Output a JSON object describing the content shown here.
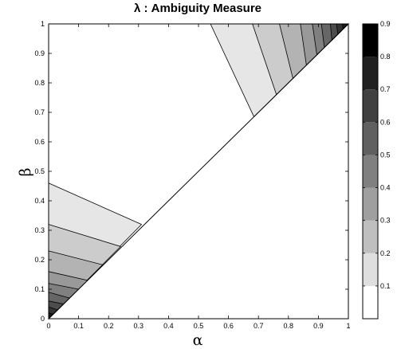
{
  "chart_data": {
    "type": "contour",
    "title": "λ : Ambiguity Measure",
    "xlabel": "α",
    "ylabel": "β",
    "xlim": [
      0,
      1
    ],
    "ylim": [
      0,
      1
    ],
    "x_ticks": [
      "0",
      "0.1",
      "0.2",
      "0.3",
      "0.4",
      "0.5",
      "0.6",
      "0.7",
      "0.8",
      "0.9",
      "1"
    ],
    "y_ticks": [
      "0",
      "0.1",
      "0.2",
      "0.3",
      "0.4",
      "0.5",
      "0.6",
      "0.7",
      "0.8",
      "0.9",
      "1"
    ],
    "grid": false,
    "diagonal": [
      [
        0,
        0
      ],
      [
        1,
        1
      ]
    ],
    "colorbar": {
      "range": [
        0,
        0.9
      ],
      "ticks": [
        "0.1",
        "0.2",
        "0.3",
        "0.4",
        "0.5",
        "0.6",
        "0.7",
        "0.8",
        "0.9"
      ],
      "colormap": "gray (white = low, black = high)"
    },
    "contour_bands": {
      "lower_left": [
        {
          "y_at_left": 0.46,
          "end": [
            0.31,
            0.32
          ],
          "color": "#e6e6e6"
        },
        {
          "y_at_left": 0.32,
          "end": [
            0.24,
            0.245
          ],
          "color": "#cccccc"
        },
        {
          "y_at_left": 0.23,
          "end": [
            0.18,
            0.183
          ],
          "color": "#b3b3b3"
        },
        {
          "y_at_left": 0.16,
          "end": [
            0.13,
            0.13
          ],
          "color": "#999999"
        },
        {
          "y_at_left": 0.12,
          "end": [
            0.1,
            0.1
          ],
          "color": "#808080"
        },
        {
          "y_at_left": 0.09,
          "end": [
            0.07,
            0.07
          ],
          "color": "#666666"
        },
        {
          "y_at_left": 0.06,
          "end": [
            0.05,
            0.05
          ],
          "color": "#4d4d4d"
        },
        {
          "y_at_left": 0.04,
          "end": [
            0.03,
            0.03
          ],
          "color": "#333333"
        },
        {
          "y_at_left": 0.02,
          "end": [
            0.015,
            0.015
          ],
          "color": "#1a1a1a"
        }
      ],
      "upper_right": [
        {
          "x_at_top": 0.54,
          "end": [
            0.685,
            0.685
          ],
          "color": "#e6e6e6"
        },
        {
          "x_at_top": 0.68,
          "end": [
            0.76,
            0.76
          ],
          "color": "#cccccc"
        },
        {
          "x_at_top": 0.77,
          "end": [
            0.815,
            0.815
          ],
          "color": "#b3b3b3"
        },
        {
          "x_at_top": 0.84,
          "end": [
            0.86,
            0.86
          ],
          "color": "#999999"
        },
        {
          "x_at_top": 0.88,
          "end": [
            0.895,
            0.895
          ],
          "color": "#808080"
        },
        {
          "x_at_top": 0.91,
          "end": [
            0.92,
            0.92
          ],
          "color": "#666666"
        },
        {
          "x_at_top": 0.94,
          "end": [
            0.945,
            0.945
          ],
          "color": "#4d4d4d"
        },
        {
          "x_at_top": 0.96,
          "end": [
            0.965,
            0.965
          ],
          "color": "#333333"
        },
        {
          "x_at_top": 0.98,
          "end": [
            0.982,
            0.982
          ],
          "color": "#1a1a1a"
        }
      ]
    }
  }
}
